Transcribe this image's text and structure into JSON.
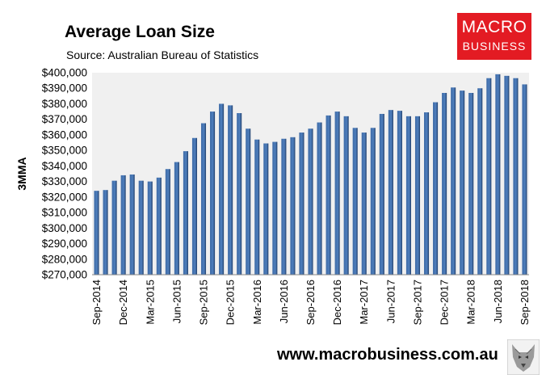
{
  "header": {
    "title": "Average Loan Size",
    "subtitle": "Source: Australian Bureau of Statistics"
  },
  "logo": {
    "line1": "MACRO",
    "line2": "BUSINESS"
  },
  "footer": {
    "url": "www.macrobusiness.com.au"
  },
  "colors": {
    "bar": "#3d6aa6",
    "bar_dark": "#1f3e6b",
    "plot_bg": "#f0f0f0",
    "logo_red": "#e31b23"
  },
  "chart_data": {
    "type": "bar",
    "title": "Average Loan Size",
    "ylabel": "3MMA",
    "xlabel": "",
    "ylim": [
      270000,
      400000
    ],
    "grid": false,
    "yticks": [
      "$270,000",
      "$280,000",
      "$290,000",
      "$300,000",
      "$310,000",
      "$320,000",
      "$330,000",
      "$340,000",
      "$350,000",
      "$360,000",
      "$370,000",
      "$380,000",
      "$390,000",
      "$400,000"
    ],
    "xtick_labels": [
      "Sep-2014",
      "Dec-2014",
      "Mar-2015",
      "Jun-2015",
      "Sep-2015",
      "Dec-2015",
      "Mar-2016",
      "Jun-2016",
      "Sep-2016",
      "Dec-2016",
      "Mar-2017",
      "Jun-2017",
      "Sep-2017",
      "Dec-2017",
      "Mar-2018",
      "Jun-2018",
      "Sep-2018"
    ],
    "categories": [
      "Sep-2014",
      "Oct-2014",
      "Nov-2014",
      "Dec-2014",
      "Jan-2015",
      "Feb-2015",
      "Mar-2015",
      "Apr-2015",
      "May-2015",
      "Jun-2015",
      "Jul-2015",
      "Aug-2015",
      "Sep-2015",
      "Oct-2015",
      "Nov-2015",
      "Dec-2015",
      "Jan-2016",
      "Feb-2016",
      "Mar-2016",
      "Apr-2016",
      "May-2016",
      "Jun-2016",
      "Jul-2016",
      "Aug-2016",
      "Sep-2016",
      "Oct-2016",
      "Nov-2016",
      "Dec-2016",
      "Jan-2017",
      "Feb-2017",
      "Mar-2017",
      "Apr-2017",
      "May-2017",
      "Jun-2017",
      "Jul-2017",
      "Aug-2017",
      "Sep-2017",
      "Oct-2017",
      "Nov-2017",
      "Dec-2017",
      "Jan-2018",
      "Feb-2018",
      "Mar-2018",
      "Apr-2018",
      "May-2018",
      "Jun-2018",
      "Jul-2018",
      "Aug-2018",
      "Sep-2018"
    ],
    "series": [
      {
        "values": [
          324000,
          324500,
          330500,
          334000,
          334500,
          330500,
          330000,
          332500,
          338000,
          342500,
          349500,
          358000,
          367500,
          375000,
          380000,
          379000,
          374000,
          364000,
          357000,
          354500,
          355500,
          357500,
          358500,
          361500,
          364000,
          368000,
          372500,
          375000,
          372000,
          364500,
          361500,
          364500,
          373500,
          376000,
          375500,
          372000,
          372000,
          374500,
          381000,
          387000,
          390500,
          388500,
          387000,
          390000,
          396500,
          399000,
          398000,
          396500,
          392500
        ]
      }
    ]
  }
}
